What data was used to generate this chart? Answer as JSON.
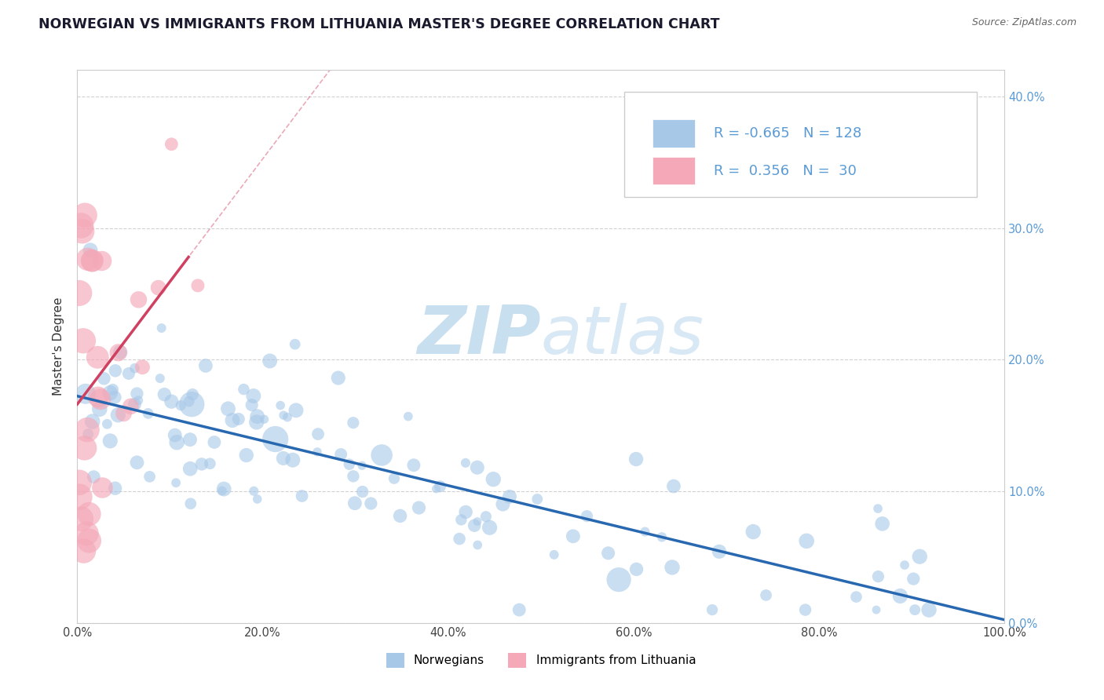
{
  "title": "NORWEGIAN VS IMMIGRANTS FROM LITHUANIA MASTER'S DEGREE CORRELATION CHART",
  "source": "Source: ZipAtlas.com",
  "ylabel": "Master's Degree",
  "watermark_zip": "ZIP",
  "watermark_atlas": "atlas",
  "legend_labels": [
    "Norwegians",
    "Immigrants from Lithuania"
  ],
  "blue_R": -0.665,
  "blue_N": 128,
  "pink_R": 0.356,
  "pink_N": 30,
  "blue_color": "#a8c8e8",
  "pink_color": "#f4a8b8",
  "blue_line_color": "#2868b0",
  "pink_line_color": "#d04060",
  "xlim": [
    0.0,
    100.0
  ],
  "ylim": [
    0.0,
    0.42
  ],
  "yticks": [
    0.0,
    0.1,
    0.2,
    0.3,
    0.4
  ],
  "xticks": [
    0.0,
    20.0,
    40.0,
    60.0,
    80.0,
    100.0
  ],
  "background_color": "#ffffff",
  "grid_color": "#cccccc",
  "title_fontsize": 12.5,
  "label_fontsize": 11,
  "tick_fontsize": 10.5,
  "right_ytick_color": "#5b9bd5",
  "legend_text_color": "#5b9bd5"
}
